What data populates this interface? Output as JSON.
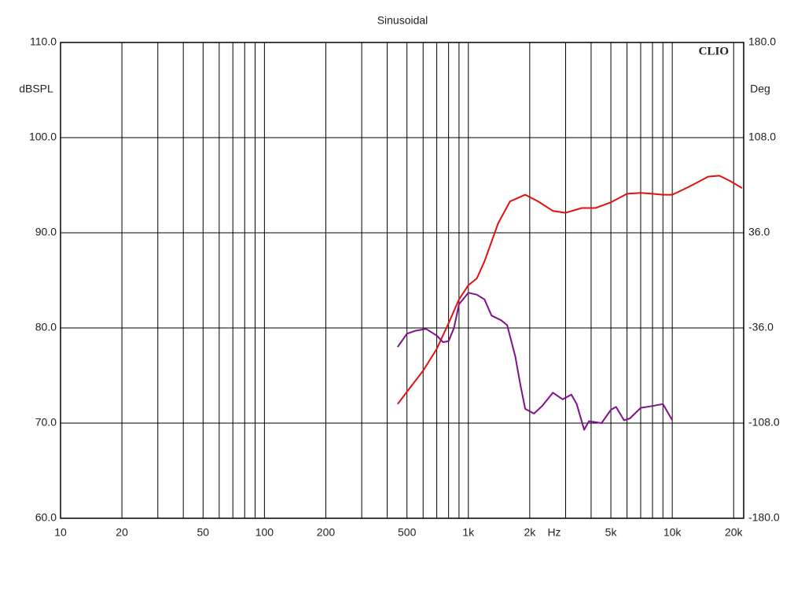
{
  "chart_data": {
    "type": "line",
    "title": "Sinusoidal",
    "brand": "CLIO",
    "ylabel": "dBSPL",
    "y2label": "Deg",
    "xunit": "Hz",
    "xscale": "log",
    "grid": true,
    "xlim": [
      10,
      22400
    ],
    "ylim": [
      60,
      110
    ],
    "y2lim": [
      -180,
      180
    ],
    "xticks": [
      10,
      20,
      50,
      100,
      200,
      500,
      {
        "value": 1000,
        "label": "1k"
      },
      {
        "value": 2000,
        "label": "2k"
      },
      {
        "value": 5000,
        "label": "5k"
      },
      {
        "value": 10000,
        "label": "10k"
      },
      {
        "value": 20000,
        "label": "20k"
      }
    ],
    "minor_xticks": [
      30,
      40,
      60,
      70,
      80,
      90,
      300,
      400,
      600,
      700,
      800,
      900,
      3000,
      4000,
      6000,
      7000,
      8000,
      9000
    ],
    "yticks": [
      {
        "value": 60,
        "label": "60.0"
      },
      {
        "value": 70,
        "label": "70.0"
      },
      {
        "value": 80,
        "label": "80.0"
      },
      {
        "value": 90,
        "label": "90.0"
      },
      {
        "value": 100,
        "label": "100.0"
      },
      {
        "value": 110,
        "label": "110.0"
      }
    ],
    "y2ticks": [
      {
        "value": -180,
        "label": "-180.0"
      },
      {
        "value": -108,
        "label": "-108.0"
      },
      {
        "value": -36,
        "label": "-36.0"
      },
      {
        "value": 36,
        "label": "36.0"
      },
      {
        "value": 108,
        "label": "108.0"
      },
      {
        "value": 180,
        "label": "180.0"
      }
    ],
    "series": [
      {
        "color": "#e31010",
        "x": [
          450,
          500,
          600,
          700,
          800,
          900,
          1000,
          1100,
          1200,
          1400,
          1600,
          1900,
          2200,
          2600,
          3000,
          3600,
          4200,
          5000,
          6000,
          7000,
          8000,
          9000,
          10000,
          12000,
          15000,
          17000,
          19000,
          22000
        ],
        "values": [
          72,
          73.3,
          75.5,
          77.8,
          80.5,
          83,
          84.5,
          85.2,
          87,
          91,
          93.3,
          94,
          93.3,
          92.3,
          92.1,
          92.6,
          92.6,
          93.2,
          94.1,
          94.2,
          94.1,
          94,
          94,
          94.8,
          95.9,
          96,
          95.5,
          94.7
        ]
      },
      {
        "color": "#80108c",
        "x": [
          450,
          500,
          550,
          620,
          700,
          750,
          800,
          850,
          900,
          1000,
          1100,
          1200,
          1300,
          1450,
          1550,
          1700,
          1800,
          1900,
          2100,
          2300,
          2600,
          2900,
          3200,
          3400,
          3700,
          3900,
          4200,
          4500,
          5000,
          5300,
          5800,
          6200,
          7000,
          8000,
          9000,
          10000
        ],
        "values": [
          78,
          79.4,
          79.7,
          79.9,
          79.2,
          78.5,
          78.6,
          80,
          82.5,
          83.7,
          83.5,
          83,
          81.3,
          80.8,
          80.3,
          77,
          74,
          71.5,
          71,
          71.8,
          73.2,
          72.5,
          73,
          72,
          69.3,
          70.2,
          70.1,
          70,
          71.4,
          71.7,
          70.3,
          70.5,
          71.6,
          71.8,
          72,
          70.3
        ]
      }
    ]
  }
}
